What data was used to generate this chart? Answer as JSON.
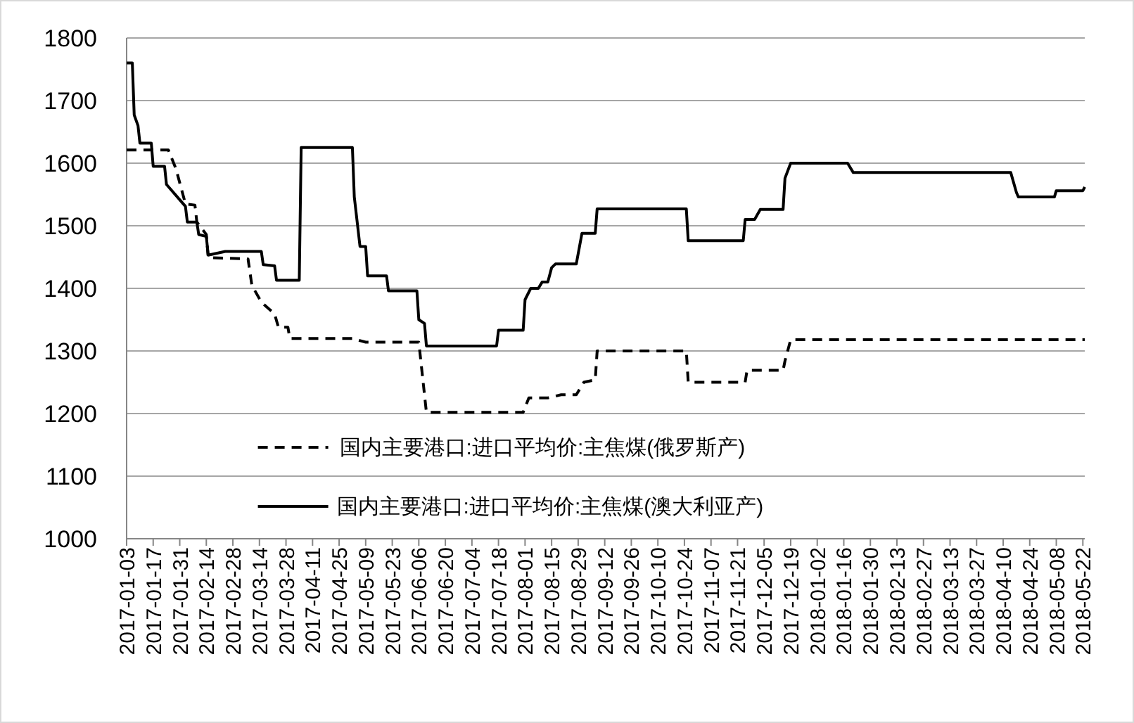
{
  "chart_data": {
    "type": "line",
    "xlim": [
      "2017-01-03",
      "2018-05-23"
    ],
    "xticks": [
      "2017-01-03",
      "2017-01-17",
      "2017-01-31",
      "2017-02-14",
      "2017-02-28",
      "2017-03-14",
      "2017-03-28",
      "2017-04-11",
      "2017-04-25",
      "2017-05-09",
      "2017-05-23",
      "2017-06-06",
      "2017-06-20",
      "2017-07-04",
      "2017-07-18",
      "2017-08-01",
      "2017-08-15",
      "2017-08-29",
      "2017-09-12",
      "2017-09-26",
      "2017-10-10",
      "2017-10-24",
      "2017-11-07",
      "2017-11-21",
      "2017-12-05",
      "2017-12-19",
      "2018-01-02",
      "2018-01-16",
      "2018-01-30",
      "2018-02-13",
      "2018-02-27",
      "2018-03-13",
      "2018-03-27",
      "2018-04-10",
      "2018-04-24",
      "2018-05-08",
      "2018-05-22"
    ],
    "ylim": [
      1000,
      1800
    ],
    "yticks": [
      1000,
      1100,
      1200,
      1300,
      1400,
      1500,
      1600,
      1700,
      1800
    ],
    "grid": "y",
    "legend": "bottom",
    "marker": "none",
    "series": [
      {
        "name": "国内主要港口:进口平均价:主焦煤(俄罗斯产)",
        "color": "#000000",
        "line_style": "dashed",
        "x": [
          "2017-01-03",
          "2017-01-25",
          "2017-01-29",
          "2017-02-03",
          "2017-02-08",
          "2017-02-09",
          "2017-02-14",
          "2017-02-15",
          "2017-03-08",
          "2017-03-10",
          "2017-03-15",
          "2017-03-22",
          "2017-03-24",
          "2017-03-29",
          "2017-03-30",
          "2017-05-02",
          "2017-05-09",
          "2017-06-06",
          "2017-06-10",
          "2017-07-31",
          "2017-08-03",
          "2017-08-13",
          "2017-08-20",
          "2017-08-28",
          "2017-09-01",
          "2017-09-07",
          "2017-09-08",
          "2017-10-25",
          "2017-10-26",
          "2017-11-25",
          "2017-11-26",
          "2017-12-15",
          "2017-12-16",
          "2017-12-19",
          "2018-05-23"
        ],
        "values": [
          1621,
          1621,
          1591,
          1535,
          1533,
          1506,
          1486,
          1449,
          1447,
          1405,
          1378,
          1359,
          1338,
          1338,
          1320,
          1320,
          1314,
          1314,
          1202,
          1202,
          1225,
          1225,
          1230,
          1230,
          1250,
          1254,
          1300,
          1300,
          1250,
          1250,
          1269,
          1269,
          1284,
          1318,
          1318
        ]
      },
      {
        "name": "国内主要港口:进口平均价:主焦煤(澳大利亚产)",
        "color": "#000000",
        "line_style": "solid",
        "x": [
          "2017-01-03",
          "2017-01-06",
          "2017-01-07",
          "2017-01-09",
          "2017-01-10",
          "2017-01-16",
          "2017-01-17",
          "2017-01-23",
          "2017-01-24",
          "2017-02-03",
          "2017-02-04",
          "2017-02-09",
          "2017-02-10",
          "2017-02-14",
          "2017-02-15",
          "2017-02-24",
          "2017-03-15",
          "2017-03-16",
          "2017-03-22",
          "2017-03-23",
          "2017-04-04",
          "2017-04-05",
          "2017-05-02",
          "2017-05-03",
          "2017-05-06",
          "2017-05-09",
          "2017-05-10",
          "2017-05-20",
          "2017-05-21",
          "2017-06-05",
          "2017-06-06",
          "2017-06-09",
          "2017-06-10",
          "2017-07-17",
          "2017-07-18",
          "2017-07-31",
          "2017-08-01",
          "2017-08-04",
          "2017-08-08",
          "2017-08-10",
          "2017-08-13",
          "2017-08-15",
          "2017-08-17",
          "2017-08-28",
          "2017-08-31",
          "2017-09-07",
          "2017-09-08",
          "2017-10-25",
          "2017-10-26",
          "2017-11-24",
          "2017-11-25",
          "2017-11-30",
          "2017-12-03",
          "2017-12-15",
          "2017-12-16",
          "2017-12-19",
          "2018-01-18",
          "2018-01-21",
          "2018-04-14",
          "2018-04-17",
          "2018-04-18",
          "2018-05-07",
          "2018-05-08",
          "2018-05-22",
          "2018-05-23"
        ],
        "values": [
          1760,
          1760,
          1677,
          1660,
          1632,
          1632,
          1595,
          1595,
          1566,
          1531,
          1506,
          1506,
          1486,
          1483,
          1453,
          1459,
          1459,
          1438,
          1436,
          1413,
          1413,
          1625,
          1625,
          1546,
          1467,
          1467,
          1420,
          1420,
          1396,
          1396,
          1350,
          1344,
          1308,
          1308,
          1333,
          1333,
          1382,
          1400,
          1400,
          1410,
          1410,
          1433,
          1439,
          1439,
          1488,
          1488,
          1527,
          1527,
          1476,
          1476,
          1510,
          1510,
          1526,
          1526,
          1576,
          1600,
          1600,
          1585,
          1585,
          1553,
          1546,
          1546,
          1556,
          1556,
          1562
        ]
      }
    ]
  }
}
